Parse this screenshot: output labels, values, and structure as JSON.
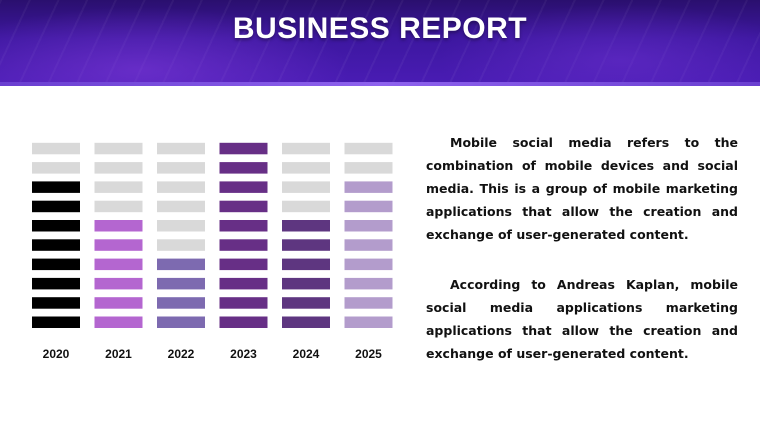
{
  "header": {
    "title": "BUSINESS REPORT"
  },
  "colors": {
    "empty": "#d9d9d9",
    "2020": "#000000",
    "2021": "#b466d0",
    "2022": "#7d6ab0",
    "2023": "#672f86",
    "2024": "#5e3680",
    "2025": "#b39ccc"
  },
  "chart_data": {
    "type": "bar",
    "categories": [
      "2020",
      "2021",
      "2022",
      "2023",
      "2024",
      "2025"
    ],
    "values": [
      8,
      6,
      4,
      10,
      6,
      8
    ],
    "max_segments": 10,
    "title": "",
    "xlabel": "",
    "ylabel": "",
    "grid": false
  },
  "text": {
    "paragraph1": "Mobile social media refers to the combination of mobile devices and social media. This is a group of mobile marketing applications that allow the creation and exchange of user-generated content.",
    "paragraph2": "According to Andreas Kaplan, mobile social media applications marketing applications that allow the creation and exchange of user-generated content."
  }
}
